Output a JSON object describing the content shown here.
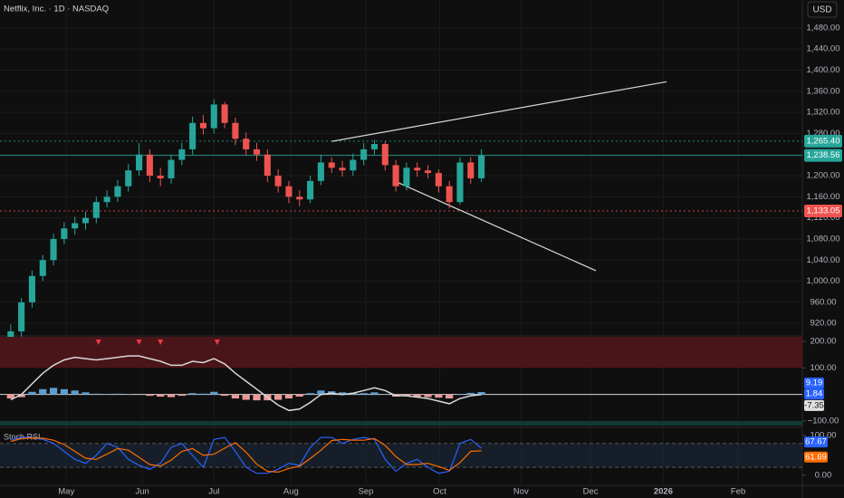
{
  "chart_data": [
    {
      "type": "candlestick",
      "title": "Netflix, Inc. · 1D · NASDAQ",
      "currency": "USD",
      "up_color": "#26a69a",
      "down_color": "#ef5350",
      "x": [
        1,
        2,
        3,
        4,
        5,
        6,
        7,
        8,
        9,
        10,
        11,
        12,
        13,
        14,
        15,
        16,
        17,
        18,
        19,
        20,
        21,
        22,
        23,
        24,
        25,
        26,
        27,
        28,
        29,
        30,
        31,
        32,
        33,
        34,
        35,
        36,
        37,
        38,
        39,
        40,
        41,
        42,
        43,
        44,
        45
      ],
      "open": [
        880,
        905,
        960,
        1010,
        1040,
        1080,
        1100,
        1110,
        1120,
        1150,
        1160,
        1180,
        1210,
        1240,
        1200,
        1195,
        1230,
        1250,
        1300,
        1290,
        1335,
        1300,
        1270,
        1250,
        1240,
        1200,
        1180,
        1160,
        1155,
        1190,
        1225,
        1215,
        1210,
        1230,
        1250,
        1260,
        1220,
        1180,
        1215,
        1210,
        1205,
        1180,
        1150,
        1225,
        1195
      ],
      "high": [
        918,
        968,
        1020,
        1050,
        1090,
        1112,
        1122,
        1132,
        1160,
        1172,
        1192,
        1222,
        1262,
        1250,
        1215,
        1240,
        1262,
        1312,
        1315,
        1345,
        1340,
        1310,
        1282,
        1262,
        1250,
        1212,
        1190,
        1172,
        1200,
        1240,
        1235,
        1228,
        1242,
        1262,
        1268,
        1265,
        1230,
        1225,
        1225,
        1220,
        1212,
        1190,
        1235,
        1235,
        1250
      ],
      "low": [
        868,
        895,
        950,
        1000,
        1030,
        1070,
        1088,
        1098,
        1110,
        1140,
        1150,
        1170,
        1200,
        1188,
        1180,
        1185,
        1220,
        1240,
        1278,
        1280,
        1290,
        1258,
        1238,
        1228,
        1188,
        1168,
        1148,
        1142,
        1148,
        1182,
        1205,
        1198,
        1200,
        1220,
        1240,
        1210,
        1170,
        1172,
        1198,
        1195,
        1168,
        1138,
        1145,
        1185,
        1188
      ],
      "close": [
        905,
        960,
        1010,
        1040,
        1080,
        1100,
        1110,
        1120,
        1150,
        1160,
        1180,
        1210,
        1240,
        1200,
        1195,
        1230,
        1250,
        1300,
        1290,
        1335,
        1300,
        1270,
        1250,
        1240,
        1200,
        1180,
        1160,
        1155,
        1190,
        1225,
        1215,
        1210,
        1230,
        1250,
        1260,
        1220,
        1180,
        1215,
        1210,
        1205,
        1180,
        1150,
        1225,
        1195,
        1238.56
      ],
      "xlim": [
        0,
        75
      ],
      "xticks": [
        {
          "value": 6.2,
          "label": "May"
        },
        {
          "value": 13.3,
          "label": "Jun"
        },
        {
          "value": 20,
          "label": "Jul"
        },
        {
          "value": 27.2,
          "label": "Aug"
        },
        {
          "value": 34.2,
          "label": "Sep"
        },
        {
          "value": 41.1,
          "label": "Oct"
        },
        {
          "value": 48.7,
          "label": "Nov"
        },
        {
          "value": 55.2,
          "label": "Dec"
        },
        {
          "value": 62,
          "label": "2026"
        },
        {
          "value": 69,
          "label": "Feb"
        }
      ],
      "ylim": [
        898,
        1533
      ],
      "yticks": [
        {
          "value": 920,
          "label": "920.00"
        },
        {
          "value": 960,
          "label": "960.00"
        },
        {
          "value": 1000,
          "label": "1,000.00"
        },
        {
          "value": 1040,
          "label": "1,040.00"
        },
        {
          "value": 1080,
          "label": "1,080.00"
        },
        {
          "value": 1120,
          "label": "1,120.00"
        },
        {
          "value": 1160,
          "label": "1,160.00"
        },
        {
          "value": 1200,
          "label": "1,200.00"
        },
        {
          "value": 1240,
          "label": "1,240.00"
        },
        {
          "value": 1280,
          "label": "1,280.00"
        },
        {
          "value": 1320,
          "label": "1,320.00"
        },
        {
          "value": 1360,
          "label": "1,360.00"
        },
        {
          "value": 1400,
          "label": "1,400.00"
        },
        {
          "value": 1440,
          "label": "1,440.00"
        },
        {
          "value": 1480,
          "label": "1,480.00"
        }
      ],
      "hlines": [
        {
          "value": 1265.4,
          "label": "1,265.40",
          "color": "#26a69a",
          "dash": "2 3"
        },
        {
          "value": 1238.56,
          "label": "1,238.56",
          "color": "#26a69a",
          "dash": "1 0"
        },
        {
          "value": 1133.05,
          "label": "1,133.05",
          "color": "#ef5350",
          "dash": "2 3"
        }
      ],
      "trendlines": [
        {
          "x": [
            31,
            62.3
          ],
          "y": [
            1265,
            1378
          ]
        },
        {
          "x": [
            37.1,
            55.7
          ],
          "y": [
            1188,
            1020
          ]
        }
      ]
    },
    {
      "type": "oscillator",
      "line_color": "#d8d8d8",
      "pos_color": "#5d9ccf",
      "neg_color": "#e89a9a",
      "line": [
        -20,
        0,
        40,
        80,
        110,
        130,
        140,
        135,
        130,
        135,
        140,
        145,
        145,
        135,
        125,
        110,
        110,
        125,
        120,
        135,
        115,
        80,
        50,
        20,
        -10,
        -40,
        -60,
        -55,
        -30,
        0,
        5,
        0,
        5,
        15,
        25,
        15,
        -5,
        -5,
        -10,
        -15,
        -25,
        -35,
        -15,
        -5,
        0
      ],
      "histogram": [
        -15,
        -10,
        10,
        20,
        25,
        20,
        15,
        8,
        3,
        2,
        3,
        2,
        0,
        -5,
        -8,
        -10,
        -5,
        5,
        3,
        10,
        -5,
        -15,
        -20,
        -22,
        -22,
        -20,
        -15,
        -8,
        5,
        15,
        12,
        8,
        6,
        5,
        8,
        2,
        -8,
        -6,
        -8,
        -10,
        -12,
        -15,
        2,
        6,
        9.19
      ],
      "ylim": [
        -117,
        217
      ],
      "yticks": [
        {
          "value": 200,
          "label": "200.00"
        },
        {
          "value": 100,
          "label": "100.00"
        },
        {
          "value": -100,
          "label": "−100.00"
        }
      ],
      "upper_zone": 100,
      "upper_zone_color": "#4a1518",
      "lower_zone": -100,
      "lower_zone_color": "#123a35",
      "signals": [
        9.2,
        13,
        15,
        20.3
      ],
      "signal_color": "#f23645",
      "readouts": [
        {
          "value": 9.19,
          "color": "#2962ff"
        },
        {
          "value": 1.84,
          "color": "#2962ff"
        },
        {
          "value": -7.35,
          "color": "#e0e0e0"
        }
      ]
    },
    {
      "type": "line",
      "title": "Stoch RSI",
      "series": [
        {
          "color": "#2962ff",
          "values": [
            90,
            95,
            95,
            90,
            80,
            60,
            40,
            30,
            50,
            80,
            70,
            40,
            25,
            15,
            30,
            70,
            80,
            50,
            20,
            90,
            95,
            60,
            20,
            5,
            5,
            15,
            30,
            25,
            70,
            95,
            95,
            80,
            90,
            95,
            90,
            40,
            10,
            30,
            40,
            20,
            5,
            10,
            80,
            90,
            67.67
          ]
        },
        {
          "color": "#ff6d00",
          "values": [
            85,
            92,
            94,
            93,
            88,
            77,
            60,
            43,
            40,
            53,
            67,
            63,
            45,
            27,
            23,
            38,
            60,
            67,
            50,
            53,
            68,
            82,
            58,
            28,
            10,
            8,
            17,
            23,
            42,
            63,
            87,
            90,
            88,
            88,
            92,
            75,
            47,
            27,
            27,
            30,
            22,
            12,
            32,
            60,
            61.69
          ]
        }
      ],
      "ylim": [
        -23,
        118
      ],
      "yticks": [
        {
          "value": 100,
          "label": "100.00"
        },
        {
          "value": 0,
          "label": "0.00"
        }
      ],
      "band": [
        20,
        80
      ],
      "band_color": "#1a2a3a"
    }
  ]
}
